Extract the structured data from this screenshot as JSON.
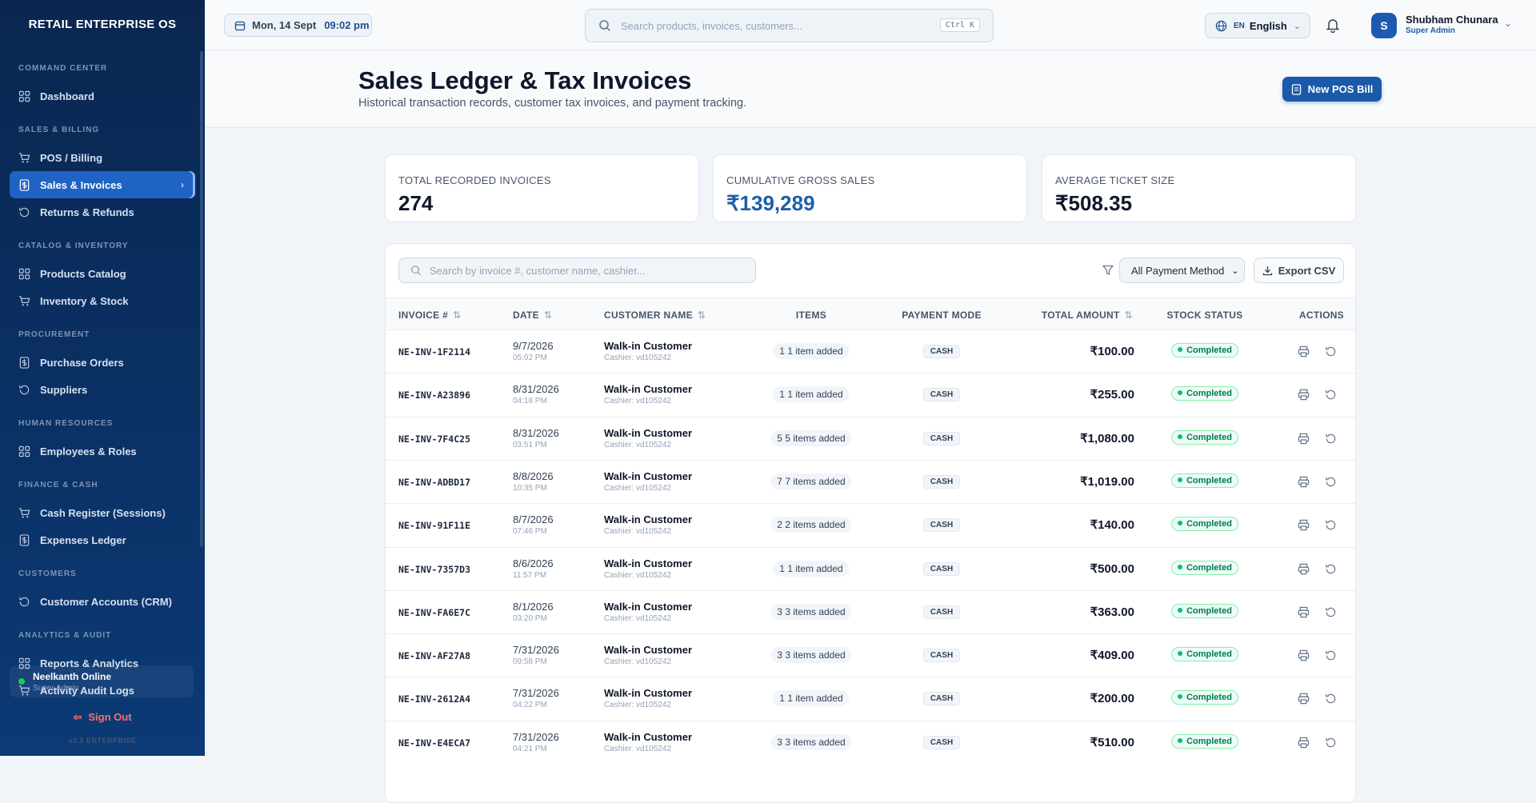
{
  "sidebar": {
    "brand": "RETAIL ENTERPRISE OS",
    "sections": [
      {
        "label": "COMMAND CENTER",
        "items": [
          "Dashboard"
        ]
      },
      {
        "label": "SALES & BILLING",
        "items": [
          "POS / Billing",
          "Sales & Invoices",
          "Returns & Refunds"
        ]
      },
      {
        "label": "CATALOG & INVENTORY",
        "items": [
          "Products Catalog",
          "Inventory & Stock"
        ]
      },
      {
        "label": "PROCUREMENT",
        "items": [
          "Purchase Orders",
          "Suppliers"
        ]
      },
      {
        "label": "HUMAN RESOURCES",
        "items": [
          "Employees & Roles"
        ]
      },
      {
        "label": "FINANCE & CASH",
        "items": [
          "Cash Register (Sessions)",
          "Expenses Ledger"
        ]
      },
      {
        "label": "CUSTOMERS",
        "items": [
          "Customer Accounts (CRM)"
        ]
      },
      {
        "label": "ANALYTICS & AUDIT",
        "items": [
          "Reports & Analytics",
          "Activity Audit Logs"
        ]
      }
    ],
    "store": "Neelkanth Online",
    "store_role": "Super Admin",
    "sign_out": "Sign Out",
    "version": "v3.0 ENTERPRISE"
  },
  "topbar": {
    "date": "Mon, 14 Sept",
    "time": "09:02 pm",
    "search": "Search products, invoices, customers...",
    "shortcut": "Ctrl K",
    "lang_code": "EN",
    "lang": "English",
    "avatar": "S",
    "user": "Shubham Chunara",
    "role": "Super Admin"
  },
  "header": {
    "title": "Sales Ledger & Tax Invoices",
    "subtitle": "Historical transaction records, customer tax invoices, and payment tracking.",
    "button": "New POS Bill"
  },
  "stats": [
    {
      "label": "TOTAL RECORDED INVOICES",
      "value": "274"
    },
    {
      "label": "CUMULATIVE GROSS SALES",
      "value": "₹139,289"
    },
    {
      "label": "AVERAGE TICKET SIZE",
      "value": "₹508.35"
    }
  ],
  "table": {
    "search": "Search by invoice #, customer name, cashier...",
    "filter": "All Payment Method",
    "export": "Export CSV",
    "columns": [
      {
        "label": "INVOICE #",
        "sortable": true
      },
      {
        "label": "DATE",
        "sortable": true
      },
      {
        "label": "CUSTOMER NAME",
        "sortable": true
      },
      {
        "label": "ITEMS",
        "sortable": false
      },
      {
        "label": "PAYMENT MODE",
        "sortable": false
      },
      {
        "label": "TOTAL AMOUNT",
        "sortable": true
      },
      {
        "label": "STOCK STATUS",
        "sortable": false
      },
      {
        "label": "ACTIONS",
        "sortable": false
      }
    ],
    "rows": [
      {
        "invoice": "NE-INV-1F2114",
        "date": "9/7/2026",
        "time": "05:02 PM",
        "customer": "Walk-in Customer",
        "cashier": "Cashier: vd105242",
        "items": "1 1 item added",
        "payment": "CASH",
        "total": "₹100.00",
        "status": "Completed"
      },
      {
        "invoice": "NE-INV-A23896",
        "date": "8/31/2026",
        "time": "04:18 PM",
        "customer": "Walk-in Customer",
        "cashier": "Cashier: vd105242",
        "items": "1 1 item added",
        "payment": "CASH",
        "total": "₹255.00",
        "status": "Completed"
      },
      {
        "invoice": "NE-INV-7F4C25",
        "date": "8/31/2026",
        "time": "03:51 PM",
        "customer": "Walk-in Customer",
        "cashier": "Cashier: vd105242",
        "items": "5 5 items added",
        "payment": "CASH",
        "total": "₹1,080.00",
        "status": "Completed"
      },
      {
        "invoice": "NE-INV-ADBD17",
        "date": "8/8/2026",
        "time": "10:35 PM",
        "customer": "Walk-in Customer",
        "cashier": "Cashier: vd105242",
        "items": "7 7 items added",
        "payment": "CASH",
        "total": "₹1,019.00",
        "status": "Completed"
      },
      {
        "invoice": "NE-INV-91F11E",
        "date": "8/7/2026",
        "time": "07:46 PM",
        "customer": "Walk-in Customer",
        "cashier": "Cashier: vd105242",
        "items": "2 2 items added",
        "payment": "CASH",
        "total": "₹140.00",
        "status": "Completed"
      },
      {
        "invoice": "NE-INV-7357D3",
        "date": "8/6/2026",
        "time": "11:57 PM",
        "customer": "Walk-in Customer",
        "cashier": "Cashier: vd105242",
        "items": "1 1 item added",
        "payment": "CASH",
        "total": "₹500.00",
        "status": "Completed"
      },
      {
        "invoice": "NE-INV-FA6E7C",
        "date": "8/1/2026",
        "time": "03:20 PM",
        "customer": "Walk-in Customer",
        "cashier": "Cashier: vd105242",
        "items": "3 3 items added",
        "payment": "CASH",
        "total": "₹363.00",
        "status": "Completed"
      },
      {
        "invoice": "NE-INV-AF27A8",
        "date": "7/31/2026",
        "time": "09:58 PM",
        "customer": "Walk-in Customer",
        "cashier": "Cashier: vd105242",
        "items": "3 3 items added",
        "payment": "CASH",
        "total": "₹409.00",
        "status": "Completed"
      },
      {
        "invoice": "NE-INV-2612A4",
        "date": "7/31/2026",
        "time": "04:22 PM",
        "customer": "Walk-in Customer",
        "cashier": "Cashier: vd105242",
        "items": "1 1 item added",
        "payment": "CASH",
        "total": "₹200.00",
        "status": "Completed"
      },
      {
        "invoice": "NE-INV-E4ECA7",
        "date": "7/31/2026",
        "time": "04:21 PM",
        "customer": "Walk-in Customer",
        "cashier": "Cashier: vd105242",
        "items": "3 3 items added",
        "payment": "CASH",
        "total": "₹510.00",
        "status": "Completed"
      }
    ]
  }
}
